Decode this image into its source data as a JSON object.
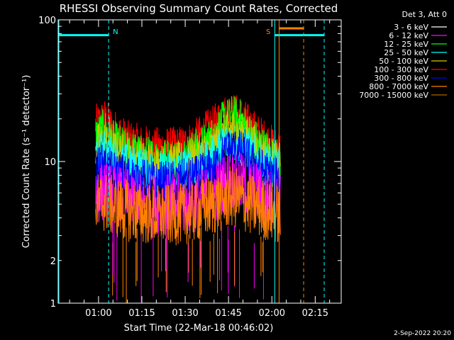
{
  "chart_data": {
    "type": "line",
    "title": "RHESSI Observing Summary Count Rates, Corrected",
    "xlabel": "Start Time (22-Mar-18 00:46:02)",
    "ylabel": "Corrected Count Rate (s⁻¹ detector⁻¹)",
    "yscale": "log",
    "ylim": [
      1,
      100
    ],
    "y_ticks": [
      {
        "value": 1,
        "label": "1"
      },
      {
        "value": 10,
        "label": "10"
      },
      {
        "value": 100,
        "label": "100"
      }
    ],
    "x_range_minutes": [
      46.03,
      144.0
    ],
    "x_ticks": [
      {
        "minutes": 60,
        "label": "01:00"
      },
      {
        "minutes": 75,
        "label": "01:15"
      },
      {
        "minutes": 90,
        "label": "01:30"
      },
      {
        "minutes": 105,
        "label": "01:45"
      },
      {
        "minutes": 120,
        "label": "02:00"
      },
      {
        "minutes": 135,
        "label": "02:15"
      }
    ],
    "legend": {
      "position": "top-right",
      "header": "Det 3, Att 0",
      "entries": [
        {
          "label": "3 - 6 keV",
          "color": "#ffffff"
        },
        {
          "label": "6 - 12 keV",
          "color": "#ff00ff"
        },
        {
          "label": "12 - 25 keV",
          "color": "#00ff00"
        },
        {
          "label": "25 - 50 keV",
          "color": "#00ffff"
        },
        {
          "label": "50 - 100 keV",
          "color": "#cccc00"
        },
        {
          "label": "100 - 300 keV",
          "color": "#ff0000"
        },
        {
          "label": "300 - 800 keV",
          "color": "#0000ff"
        },
        {
          "label": "800 - 7000 keV",
          "color": "#ff8000"
        },
        {
          "label": "7000 - 15000 keV",
          "color": "#aa6600"
        }
      ]
    },
    "series": [
      {
        "name": "100 - 300 keV",
        "color": "#ff0000",
        "points": [
          [
            59,
            18
          ],
          [
            62,
            20
          ],
          [
            65,
            17
          ],
          [
            70,
            14
          ],
          [
            75,
            13
          ],
          [
            80,
            12.5
          ],
          [
            85,
            12.5
          ],
          [
            90,
            13
          ],
          [
            95,
            15
          ],
          [
            100,
            18
          ],
          [
            103,
            21
          ],
          [
            106,
            22
          ],
          [
            109,
            21
          ],
          [
            112,
            18
          ],
          [
            116,
            15
          ],
          [
            120,
            13
          ],
          [
            123,
            12
          ]
        ]
      },
      {
        "name": "12 - 25 keV",
        "color": "#00ff00",
        "points": [
          [
            59,
            15
          ],
          [
            62,
            17
          ],
          [
            65,
            14
          ],
          [
            70,
            12
          ],
          [
            75,
            11
          ],
          [
            80,
            10.5
          ],
          [
            85,
            10.5
          ],
          [
            90,
            11
          ],
          [
            95,
            12.5
          ],
          [
            100,
            15
          ],
          [
            103,
            19
          ],
          [
            106,
            21
          ],
          [
            109,
            20
          ],
          [
            112,
            16
          ],
          [
            116,
            13
          ],
          [
            120,
            11
          ],
          [
            123,
            10
          ]
        ]
      },
      {
        "name": "50 - 100 keV",
        "color": "#cccc00",
        "points": [
          [
            59,
            13
          ],
          [
            62,
            14
          ],
          [
            65,
            12
          ],
          [
            70,
            11
          ],
          [
            75,
            10
          ],
          [
            80,
            9.5
          ],
          [
            85,
            9.5
          ],
          [
            90,
            10
          ],
          [
            95,
            11
          ],
          [
            100,
            13
          ],
          [
            103,
            15
          ],
          [
            106,
            17
          ],
          [
            109,
            16
          ],
          [
            112,
            14
          ],
          [
            116,
            12
          ],
          [
            120,
            10.5
          ],
          [
            123,
            9.5
          ]
        ]
      },
      {
        "name": "25 - 50 keV",
        "color": "#00ffff",
        "points": [
          [
            59,
            11
          ],
          [
            62,
            12
          ],
          [
            65,
            10.5
          ],
          [
            70,
            9.5
          ],
          [
            75,
            9
          ],
          [
            80,
            8.5
          ],
          [
            85,
            8.5
          ],
          [
            90,
            9
          ],
          [
            95,
            9.5
          ],
          [
            100,
            11
          ],
          [
            103,
            13
          ],
          [
            106,
            14
          ],
          [
            109,
            13
          ],
          [
            112,
            12
          ],
          [
            116,
            10
          ],
          [
            120,
            9
          ],
          [
            123,
            8.5
          ]
        ]
      },
      {
        "name": "300 - 800 keV",
        "color": "#0000ff",
        "points": [
          [
            59,
            9
          ],
          [
            62,
            9.5
          ],
          [
            65,
            8.5
          ],
          [
            70,
            8
          ],
          [
            75,
            7.5
          ],
          [
            80,
            7.2
          ],
          [
            85,
            7.2
          ],
          [
            90,
            7.5
          ],
          [
            95,
            8
          ],
          [
            100,
            9
          ],
          [
            103,
            11
          ],
          [
            106,
            12.5
          ],
          [
            109,
            12
          ],
          [
            112,
            10.5
          ],
          [
            116,
            9
          ],
          [
            120,
            8
          ],
          [
            123,
            7.5
          ]
        ]
      },
      {
        "name": "6 - 12 keV",
        "color": "#ff00ff",
        "points": [
          [
            59,
            6
          ],
          [
            62,
            6.2
          ],
          [
            65,
            5.8
          ],
          [
            70,
            5.5
          ],
          [
            75,
            5.2
          ],
          [
            80,
            5
          ],
          [
            85,
            5
          ],
          [
            90,
            5
          ],
          [
            95,
            5.3
          ],
          [
            100,
            6
          ],
          [
            103,
            6.8
          ],
          [
            106,
            7.5
          ],
          [
            109,
            7
          ],
          [
            112,
            6.5
          ],
          [
            116,
            5.8
          ],
          [
            120,
            5.3
          ],
          [
            123,
            5
          ]
        ]
      },
      {
        "name": "800 - 7000 keV",
        "color": "#ff8000",
        "points": [
          [
            59,
            5
          ],
          [
            62,
            5.2
          ],
          [
            65,
            4.8
          ],
          [
            70,
            4.5
          ],
          [
            75,
            4.3
          ],
          [
            80,
            4.2
          ],
          [
            85,
            4.2
          ],
          [
            90,
            4.3
          ],
          [
            95,
            4.5
          ],
          [
            100,
            5
          ],
          [
            103,
            5.3
          ],
          [
            106,
            5.6
          ],
          [
            109,
            5.4
          ],
          [
            112,
            5
          ],
          [
            116,
            4.7
          ],
          [
            120,
            4.4
          ],
          [
            123,
            4.2
          ]
        ]
      }
    ],
    "annotations": [
      {
        "text": "N",
        "color": "#00ffff",
        "minutes": 63.5
      },
      {
        "text": "S",
        "color": "#ff8000",
        "minutes": 121.0
      }
    ],
    "timestamp": "2-Sep-2022 20:20"
  }
}
